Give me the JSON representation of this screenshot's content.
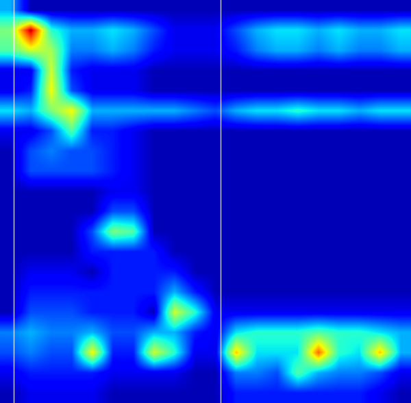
{
  "chart_data": {
    "type": "heatmap",
    "tick_labels": false,
    "color_range": [
      0,
      1
    ],
    "vlines": [
      0.67,
      10.73
    ],
    "cells": [
      [
        0.3,
        0.05,
        0.05,
        0.05,
        0.05,
        0.05,
        0.05,
        0.05,
        0.05,
        0.05,
        0.05,
        0.05,
        0.05,
        0.05,
        0.05,
        0.05,
        0.05,
        0.05,
        0.05,
        0.05
      ],
      [
        0.5,
        0.95,
        0.4,
        0.3,
        0.3,
        0.35,
        0.3,
        0.2,
        0.1,
        0.1,
        0.1,
        0.2,
        0.3,
        0.35,
        0.35,
        0.3,
        0.35,
        0.3,
        0.3,
        0.35
      ],
      [
        0.45,
        0.6,
        0.55,
        0.25,
        0.25,
        0.3,
        0.25,
        0.15,
        0.1,
        0.1,
        0.1,
        0.15,
        0.25,
        0.3,
        0.3,
        0.25,
        0.3,
        0.25,
        0.25,
        0.3
      ],
      [
        0.1,
        0.1,
        0.6,
        0.15,
        0.1,
        0.1,
        0.1,
        0.05,
        0.05,
        0.05,
        0.05,
        0.05,
        0.05,
        0.05,
        0.05,
        0.05,
        0.05,
        0.05,
        0.05,
        0.05
      ],
      [
        0.1,
        0.15,
        0.65,
        0.2,
        0.1,
        0.1,
        0.1,
        0.05,
        0.05,
        0.05,
        0.05,
        0.05,
        0.05,
        0.05,
        0.05,
        0.05,
        0.05,
        0.05,
        0.05,
        0.05
      ],
      [
        0.35,
        0.3,
        0.5,
        0.65,
        0.3,
        0.3,
        0.3,
        0.3,
        0.3,
        0.25,
        0.2,
        0.3,
        0.35,
        0.35,
        0.4,
        0.35,
        0.35,
        0.3,
        0.35,
        0.35
      ],
      [
        0.1,
        0.1,
        0.2,
        0.45,
        0.15,
        0.15,
        0.1,
        0.05,
        0.05,
        0.05,
        0.05,
        0.05,
        0.05,
        0.05,
        0.05,
        0.05,
        0.05,
        0.05,
        0.05,
        0.05
      ],
      [
        0.05,
        0.2,
        0.25,
        0.2,
        0.2,
        0.15,
        0.1,
        0.05,
        0.05,
        0.05,
        0.05,
        0.05,
        0.05,
        0.05,
        0.05,
        0.05,
        0.05,
        0.05,
        0.05,
        0.05
      ],
      [
        0.05,
        0.2,
        0.2,
        0.2,
        0.2,
        0.15,
        0.1,
        0.05,
        0.05,
        0.05,
        0.05,
        0.05,
        0.05,
        0.05,
        0.05,
        0.05,
        0.05,
        0.05,
        0.05,
        0.05
      ],
      [
        0.05,
        0.05,
        0.05,
        0.05,
        0.05,
        0.1,
        0.1,
        0.05,
        0.05,
        0.05,
        0.05,
        0.05,
        0.05,
        0.05,
        0.05,
        0.05,
        0.05,
        0.05,
        0.05,
        0.05
      ],
      [
        0.05,
        0.05,
        0.05,
        0.05,
        0.05,
        0.2,
        0.2,
        0.05,
        0.05,
        0.05,
        0.05,
        0.05,
        0.05,
        0.05,
        0.05,
        0.05,
        0.05,
        0.05,
        0.05,
        0.05
      ],
      [
        0.05,
        0.05,
        0.05,
        0.05,
        0.2,
        0.5,
        0.45,
        0.05,
        0.05,
        0.05,
        0.05,
        0.05,
        0.05,
        0.05,
        0.05,
        0.05,
        0.05,
        0.05,
        0.05,
        0.05
      ],
      [
        0.05,
        0.05,
        0.05,
        0.05,
        0.15,
        0.15,
        0.15,
        0.15,
        0.05,
        0.05,
        0.05,
        0.05,
        0.05,
        0.05,
        0.05,
        0.05,
        0.05,
        0.05,
        0.05,
        0.05
      ],
      [
        0.05,
        0.1,
        0.1,
        0.1,
        0.05,
        0.15,
        0.15,
        0.15,
        0.15,
        0.05,
        0.05,
        0.05,
        0.05,
        0.05,
        0.05,
        0.05,
        0.05,
        0.05,
        0.05,
        0.05
      ],
      [
        0.05,
        0.15,
        0.15,
        0.15,
        0.15,
        0.15,
        0.15,
        0.15,
        0.3,
        0.15,
        0.05,
        0.05,
        0.05,
        0.05,
        0.05,
        0.05,
        0.05,
        0.05,
        0.05,
        0.05
      ],
      [
        0.05,
        0.2,
        0.2,
        0.2,
        0.15,
        0.15,
        0.15,
        0.05,
        0.6,
        0.4,
        0.1,
        0.1,
        0.1,
        0.1,
        0.1,
        0.1,
        0.1,
        0.1,
        0.1,
        0.1
      ],
      [
        0.25,
        0.3,
        0.25,
        0.25,
        0.3,
        0.2,
        0.2,
        0.3,
        0.3,
        0.15,
        0.1,
        0.35,
        0.4,
        0.4,
        0.4,
        0.45,
        0.4,
        0.4,
        0.35,
        0.3
      ],
      [
        0.2,
        0.25,
        0.2,
        0.2,
        0.65,
        0.15,
        0.15,
        0.6,
        0.4,
        0.1,
        0.1,
        0.7,
        0.35,
        0.35,
        0.35,
        0.8,
        0.4,
        0.35,
        0.7,
        0.3
      ],
      [
        0.1,
        0.15,
        0.15,
        0.15,
        0.15,
        0.1,
        0.1,
        0.1,
        0.1,
        0.05,
        0.05,
        0.25,
        0.25,
        0.2,
        0.45,
        0.3,
        0.25,
        0.25,
        0.2,
        0.1
      ],
      [
        0.05,
        0.1,
        0.1,
        0.1,
        0.1,
        0.05,
        0.05,
        0.05,
        0.05,
        0.05,
        0.05,
        0.15,
        0.15,
        0.15,
        0.15,
        0.15,
        0.15,
        0.15,
        0.1,
        0.05
      ]
    ]
  }
}
